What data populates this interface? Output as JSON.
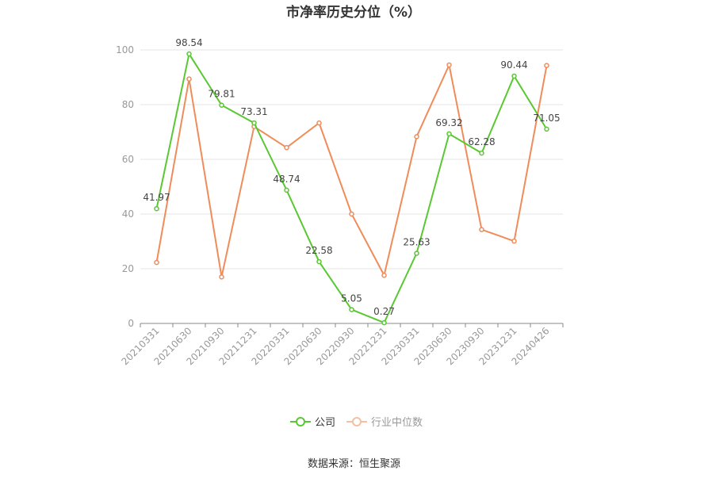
{
  "chart_data": {
    "type": "line",
    "title": "市净率历史分位（%）",
    "categories": [
      "20210331",
      "20210630",
      "20210930",
      "20211231",
      "20220331",
      "20220630",
      "20220930",
      "20221231",
      "20230331",
      "20230630",
      "20230930",
      "20231231",
      "20240426"
    ],
    "ylim": [
      0,
      100
    ],
    "yticks": [
      0,
      20,
      40,
      60,
      80,
      100
    ],
    "grid": true,
    "legend_position": "bottom",
    "series": [
      {
        "name": "公司",
        "color": "#5ac832",
        "values": [
          41.97,
          98.54,
          79.81,
          73.31,
          48.74,
          22.58,
          5.05,
          0.27,
          25.63,
          69.32,
          62.28,
          90.44,
          71.05
        ],
        "labels": true
      },
      {
        "name": "行业中位数",
        "color": "#f08c5a",
        "values": [
          22.3,
          89.4,
          17.0,
          72.0,
          64.3,
          73.3,
          40.0,
          17.6,
          68.3,
          94.5,
          34.3,
          30.1,
          94.3
        ],
        "labels": false
      }
    ]
  },
  "footer": {
    "source": "数据来源：恒生聚源"
  }
}
